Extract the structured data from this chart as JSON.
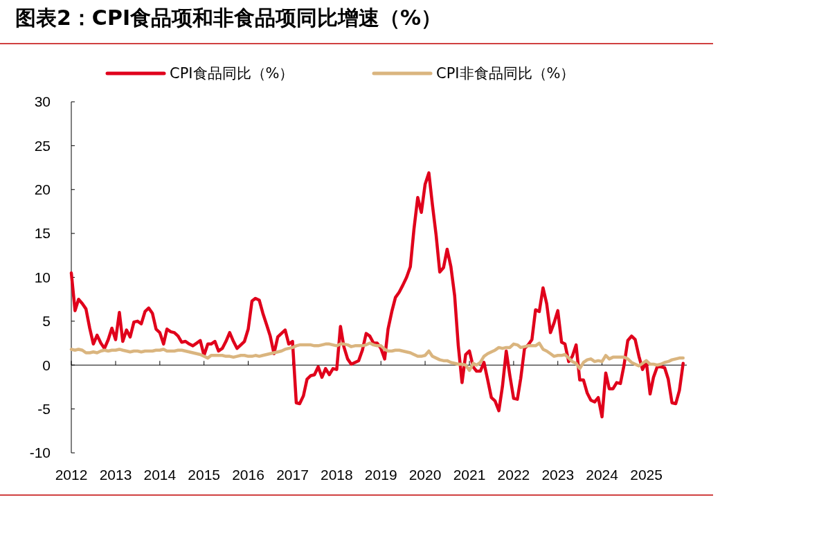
{
  "chart_data": {
    "type": "line",
    "title": "图表2：CPI食品项和非食品项同比增速（%）",
    "legend": "top",
    "line_style": "solid",
    "marker": "none",
    "xlim": [
      "2012-01",
      "2025-12"
    ],
    "xticks": [
      "2012",
      "2013",
      "2014",
      "2015",
      "2016",
      "2017",
      "2018",
      "2019",
      "2020",
      "2021",
      "2022",
      "2023",
      "2024",
      "2025"
    ],
    "ylim": [
      -10,
      30
    ],
    "yticks": [
      -10,
      -5,
      0,
      5,
      10,
      15,
      20,
      25,
      30
    ],
    "x": [
      "2012-01",
      "2012-02",
      "2012-03",
      "2012-04",
      "2012-05",
      "2012-06",
      "2012-07",
      "2012-08",
      "2012-09",
      "2012-10",
      "2012-11",
      "2012-12",
      "2013-01",
      "2013-02",
      "2013-03",
      "2013-04",
      "2013-05",
      "2013-06",
      "2013-07",
      "2013-08",
      "2013-09",
      "2013-10",
      "2013-11",
      "2013-12",
      "2014-01",
      "2014-02",
      "2014-03",
      "2014-04",
      "2014-05",
      "2014-06",
      "2014-07",
      "2014-08",
      "2014-09",
      "2014-10",
      "2014-11",
      "2014-12",
      "2015-01",
      "2015-02",
      "2015-03",
      "2015-04",
      "2015-05",
      "2015-06",
      "2015-07",
      "2015-08",
      "2015-09",
      "2015-10",
      "2015-11",
      "2015-12",
      "2016-01",
      "2016-02",
      "2016-03",
      "2016-04",
      "2016-05",
      "2016-06",
      "2016-07",
      "2016-08",
      "2016-09",
      "2016-10",
      "2016-11",
      "2016-12",
      "2017-01",
      "2017-02",
      "2017-03",
      "2017-04",
      "2017-05",
      "2017-06",
      "2017-07",
      "2017-08",
      "2017-09",
      "2017-10",
      "2017-11",
      "2017-12",
      "2018-01",
      "2018-02",
      "2018-03",
      "2018-04",
      "2018-05",
      "2018-06",
      "2018-07",
      "2018-08",
      "2018-09",
      "2018-10",
      "2018-11",
      "2018-12",
      "2019-01",
      "2019-02",
      "2019-03",
      "2019-04",
      "2019-05",
      "2019-06",
      "2019-07",
      "2019-08",
      "2019-09",
      "2019-10",
      "2019-11",
      "2019-12",
      "2020-01",
      "2020-02",
      "2020-03",
      "2020-04",
      "2020-05",
      "2020-06",
      "2020-07",
      "2020-08",
      "2020-09",
      "2020-10",
      "2020-11",
      "2020-12",
      "2021-01",
      "2021-02",
      "2021-03",
      "2021-04",
      "2021-05",
      "2021-06",
      "2021-07",
      "2021-08",
      "2021-09",
      "2021-10",
      "2021-11",
      "2021-12",
      "2022-01",
      "2022-02",
      "2022-03",
      "2022-04",
      "2022-05",
      "2022-06",
      "2022-07",
      "2022-08",
      "2022-09",
      "2022-10",
      "2022-11",
      "2022-12",
      "2023-01",
      "2023-02",
      "2023-03",
      "2023-04",
      "2023-05",
      "2023-06",
      "2023-07",
      "2023-08",
      "2023-09",
      "2023-10",
      "2023-11",
      "2023-12",
      "2024-01",
      "2024-02",
      "2024-03",
      "2024-04",
      "2024-05",
      "2024-06",
      "2024-07",
      "2024-08",
      "2024-09",
      "2024-10",
      "2024-11",
      "2024-12",
      "2025-01",
      "2025-02",
      "2025-03",
      "2025-04",
      "2025-05",
      "2025-06",
      "2025-07",
      "2025-08",
      "2025-09",
      "2025-10",
      "2025-11"
    ],
    "series": [
      {
        "name": "CPI食品同比（%）",
        "color": "#e0001b",
        "values": [
          10.5,
          6.2,
          7.5,
          7.0,
          6.4,
          4.2,
          2.4,
          3.4,
          2.5,
          1.9,
          2.9,
          4.2,
          2.9,
          6.0,
          2.7,
          4.0,
          3.2,
          4.9,
          5.0,
          4.7,
          6.1,
          6.5,
          5.9,
          4.1,
          3.7,
          2.4,
          4.1,
          3.8,
          3.7,
          3.3,
          2.6,
          2.7,
          2.4,
          2.2,
          2.5,
          2.8,
          1.1,
          2.4,
          2.4,
          2.7,
          1.6,
          1.9,
          2.7,
          3.7,
          2.7,
          1.9,
          2.3,
          2.7,
          4.1,
          7.3,
          7.6,
          7.4,
          5.9,
          4.6,
          3.3,
          1.3,
          3.2,
          3.6,
          4.0,
          2.4,
          2.7,
          -4.3,
          -4.4,
          -3.5,
          -1.6,
          -1.2,
          -1.1,
          -0.2,
          -1.4,
          -0.4,
          -1.1,
          -0.4,
          -0.5,
          4.4,
          2.1,
          0.7,
          0.1,
          0.3,
          0.5,
          1.7,
          3.6,
          3.3,
          2.5,
          2.5,
          1.9,
          0.7,
          4.1,
          6.1,
          7.7,
          8.3,
          9.1,
          10.0,
          11.2,
          15.5,
          19.1,
          17.4,
          20.6,
          21.9,
          18.3,
          14.8,
          10.6,
          11.1,
          13.2,
          11.2,
          7.9,
          2.2,
          -2.0,
          1.2,
          1.6,
          -0.2,
          -0.7,
          -0.7,
          0.3,
          -1.7,
          -3.7,
          -4.1,
          -5.2,
          -2.4,
          1.6,
          -1.2,
          -3.8,
          -3.9,
          -1.5,
          1.9,
          2.3,
          2.9,
          6.3,
          6.1,
          8.8,
          7.0,
          3.7,
          4.8,
          6.2,
          2.6,
          2.4,
          0.4,
          1.0,
          2.3,
          -1.7,
          -1.7,
          -3.2,
          -4.0,
          -4.2,
          -3.7,
          -5.9,
          -0.9,
          -2.7,
          -2.7,
          -2.0,
          -2.1,
          0.0,
          2.8,
          3.3,
          2.9,
          1.0,
          -0.5,
          0.4,
          -3.3,
          -1.4,
          -0.2,
          -0.2,
          -0.3,
          -1.6,
          -4.3,
          -4.4,
          -2.9,
          0.2
        ]
      },
      {
        "name": "CPI非食品同比（%）",
        "color": "#dab57f",
        "values": [
          1.8,
          1.7,
          1.8,
          1.7,
          1.4,
          1.4,
          1.5,
          1.4,
          1.6,
          1.7,
          1.6,
          1.7,
          1.7,
          1.8,
          1.7,
          1.6,
          1.5,
          1.6,
          1.6,
          1.5,
          1.6,
          1.6,
          1.6,
          1.7,
          1.7,
          1.8,
          1.6,
          1.6,
          1.6,
          1.7,
          1.7,
          1.6,
          1.5,
          1.4,
          1.3,
          1.2,
          1.0,
          0.8,
          1.1,
          1.1,
          1.1,
          1.1,
          1.0,
          1.0,
          0.9,
          1.0,
          1.1,
          1.1,
          1.0,
          1.0,
          1.1,
          1.0,
          1.1,
          1.2,
          1.3,
          1.4,
          1.5,
          1.6,
          1.8,
          1.9,
          2.0,
          2.2,
          2.3,
          2.3,
          2.3,
          2.3,
          2.2,
          2.2,
          2.3,
          2.4,
          2.4,
          2.3,
          2.2,
          2.4,
          2.4,
          2.3,
          2.1,
          2.2,
          2.2,
          2.2,
          2.3,
          2.5,
          2.3,
          2.2,
          2.2,
          1.8,
          1.6,
          1.6,
          1.7,
          1.7,
          1.6,
          1.5,
          1.4,
          1.2,
          1.0,
          1.0,
          1.1,
          1.6,
          1.0,
          0.8,
          0.6,
          0.5,
          0.5,
          0.3,
          0.2,
          0.1,
          0.1,
          0.0,
          -0.6,
          0.2,
          0.0,
          0.3,
          1.0,
          1.3,
          1.5,
          1.7,
          2.0,
          1.9,
          2.0,
          2.0,
          2.4,
          2.3,
          2.0,
          2.1,
          2.2,
          2.2,
          2.2,
          2.5,
          1.8,
          1.6,
          1.3,
          1.0,
          1.1,
          1.1,
          1.2,
          0.8,
          0.4,
          0.2,
          -0.4,
          0.3,
          0.6,
          0.7,
          0.4,
          0.5,
          0.4,
          1.1,
          0.7,
          0.9,
          0.9,
          0.9,
          0.9,
          0.7,
          0.3,
          0.1,
          -0.1,
          0.2,
          0.5,
          0.1,
          0.1,
          0.0,
          0.1,
          0.3,
          0.4,
          0.6,
          0.7,
          0.8,
          0.8
        ]
      }
    ]
  }
}
